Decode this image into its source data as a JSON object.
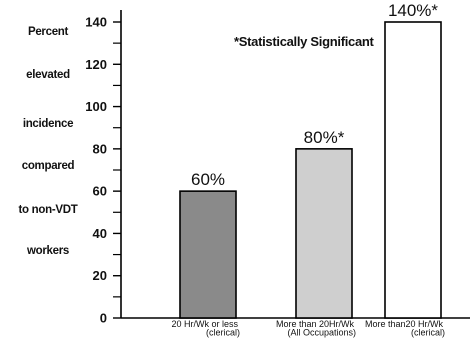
{
  "chart_data": {
    "type": "bar",
    "ylabel_lines": [
      "Percent",
      "elevated",
      "incidence",
      "compared",
      "to non-VDT",
      "workers"
    ],
    "annotation": "*Statistically Significant",
    "ylim": [
      0,
      140
    ],
    "yticks": [
      0,
      20,
      40,
      60,
      80,
      100,
      120,
      140
    ],
    "categories": [
      [
        "20 Hr/Wk or less",
        "(clerical)"
      ],
      [
        "More than 20Hr/Wk",
        "(All Occupations)"
      ],
      [
        "More than20 Hr/Wk",
        "(clerical)"
      ]
    ],
    "values": [
      60,
      80,
      140
    ],
    "value_labels": [
      "60%",
      "80%*",
      "140%*"
    ],
    "bar_colors": [
      "#8a8a8a",
      "#cfcfcf",
      "#ffffff"
    ],
    "grid": false
  }
}
